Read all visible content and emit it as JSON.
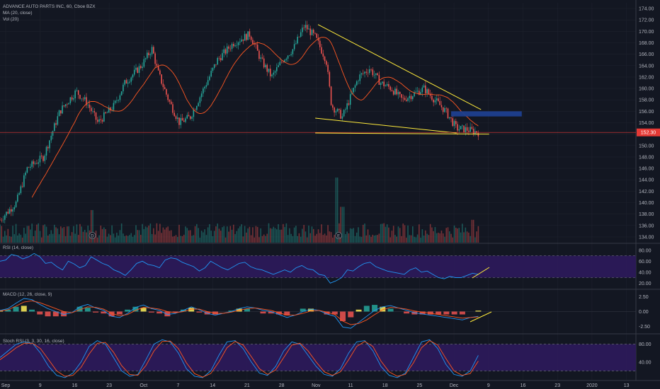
{
  "header": {
    "title": "ADVANCE AUTO PARTS INC, 60, Cboe BZX",
    "ma_label": "MA (20, close)",
    "vol_label": "Vol (20)"
  },
  "panes": {
    "rsi_label": "RSI (14, close)",
    "macd_label": "MACD (12, 26, close, 9)",
    "stoch_label": "Stoch RSI (3, 3, 30, 16, close)"
  },
  "last_price": "152.30",
  "colors": {
    "background": "#131722",
    "up": "#26a69a",
    "down": "#ef5350",
    "ma": "#ff5722",
    "trendline": "#ffeb3b",
    "zone": "#1e3f8f",
    "price_line": "#e53935",
    "purple_band": "#2e1a5c",
    "indicator_line": "#2196f3"
  },
  "chart_data": [
    {
      "type": "candlestick",
      "title": "ADVANCE AUTO PARTS INC, 60, Cboe BZX",
      "ylim": [
        133,
        175
      ],
      "y_ticks": [
        "174.00",
        "172.00",
        "170.00",
        "168.00",
        "166.00",
        "164.00",
        "162.00",
        "160.00",
        "158.00",
        "156.00",
        "154.00",
        "152.00",
        "150.00",
        "148.00",
        "146.00",
        "144.00",
        "142.00",
        "140.00",
        "138.00",
        "136.00",
        "134.00"
      ],
      "x_tick_labels": [
        "Sep",
        "9",
        "16",
        "23",
        "Oct",
        "7",
        "14",
        "21",
        "28",
        "Nov",
        "11",
        "18",
        "25",
        "Dec",
        "9",
        "16",
        "23",
        "2020",
        "13"
      ],
      "events": [
        "D",
        "E"
      ],
      "price_path": [
        {
          "x": 0,
          "y": 137
        },
        {
          "x": 3,
          "y": 140
        },
        {
          "x": 5,
          "y": 146
        },
        {
          "x": 8,
          "y": 148
        },
        {
          "x": 11,
          "y": 156
        },
        {
          "x": 14,
          "y": 159.5
        },
        {
          "x": 16,
          "y": 157.5
        },
        {
          "x": 18,
          "y": 154
        },
        {
          "x": 21,
          "y": 157
        },
        {
          "x": 23,
          "y": 161
        },
        {
          "x": 26,
          "y": 164
        },
        {
          "x": 28,
          "y": 167
        },
        {
          "x": 29,
          "y": 163
        },
        {
          "x": 31,
          "y": 158
        },
        {
          "x": 33,
          "y": 154
        },
        {
          "x": 35,
          "y": 155
        },
        {
          "x": 38,
          "y": 161
        },
        {
          "x": 40,
          "y": 165
        },
        {
          "x": 43,
          "y": 168
        },
        {
          "x": 46,
          "y": 169.5
        },
        {
          "x": 48,
          "y": 165
        },
        {
          "x": 50,
          "y": 162
        },
        {
          "x": 52,
          "y": 165
        },
        {
          "x": 54,
          "y": 167
        },
        {
          "x": 56,
          "y": 171
        },
        {
          "x": 58,
          "y": 169
        },
        {
          "x": 60,
          "y": 165
        },
        {
          "x": 61,
          "y": 157
        },
        {
          "x": 63,
          "y": 155
        },
        {
          "x": 66,
          "y": 162
        },
        {
          "x": 68,
          "y": 163.5
        },
        {
          "x": 70,
          "y": 161
        },
        {
          "x": 72,
          "y": 160
        },
        {
          "x": 74,
          "y": 158
        },
        {
          "x": 76,
          "y": 159
        },
        {
          "x": 78,
          "y": 160
        },
        {
          "x": 80,
          "y": 158
        },
        {
          "x": 82,
          "y": 156
        },
        {
          "x": 84,
          "y": 153
        },
        {
          "x": 86,
          "y": 152.8
        },
        {
          "x": 88,
          "y": 152.3
        }
      ],
      "volume": {
        "typical": 0.25,
        "spikes": [
          {
            "x": 17,
            "v": 0.5
          },
          {
            "x": 62,
            "v": 1.0
          },
          {
            "x": 63,
            "v": 0.55
          },
          {
            "x": 87,
            "v": 0.35
          }
        ]
      },
      "annotations": {
        "resistance_line": [
          {
            "x": 58.5,
            "y": 171.2
          },
          {
            "x": 88.5,
            "y": 156.3
          }
        ],
        "support_line_upper": [
          {
            "x": 58,
            "y": 154.8
          },
          {
            "x": 84,
            "y": 152.2
          }
        ],
        "support_line_lower": [
          {
            "x": 58,
            "y": 152.2
          },
          {
            "x": 90,
            "y": 152.0
          }
        ],
        "zone": {
          "x1": 83,
          "x2": 96,
          "y1": 156.0,
          "y2": 155.1
        }
      }
    },
    {
      "type": "line",
      "title": "RSI (14, close)",
      "ylim": [
        10,
        90
      ],
      "y_ticks": [
        "80.00",
        "60.00",
        "40.00",
        "20.00"
      ],
      "band": [
        30,
        70
      ],
      "values": [
        60,
        62,
        72,
        70,
        64,
        68,
        74,
        68,
        56,
        58,
        50,
        44,
        60,
        55,
        48,
        52,
        68,
        62,
        56,
        52,
        44,
        40,
        34,
        44,
        56,
        60,
        54,
        52,
        48,
        62,
        66,
        64,
        58,
        54,
        50,
        42,
        48,
        60,
        54,
        48,
        44,
        50,
        56,
        58,
        50,
        46,
        44,
        40,
        36,
        40,
        44,
        40,
        48,
        52,
        46,
        44,
        36,
        34,
        20,
        24,
        30,
        44,
        42,
        50,
        56,
        58,
        50,
        46,
        42,
        40,
        38,
        36,
        44,
        48,
        40,
        42,
        36,
        30,
        28,
        32,
        30,
        30,
        34,
        38,
        36
      ]
    },
    {
      "type": "line",
      "title": "MACD (12, 26, close, 9)",
      "ylim": [
        -3.5,
        3.5
      ],
      "y_ticks": [
        "2.50",
        "0.00",
        "-2.50"
      ],
      "macd": [
        0.2,
        0.5,
        1.4,
        2.2,
        2.0,
        1.2,
        0.5,
        0.0,
        -0.5,
        -0.2,
        0.8,
        1.2,
        0.6,
        0.2,
        -0.8,
        -1.0,
        -0.3,
        0.7,
        1.1,
        0.5,
        0.2,
        -0.5,
        -0.3,
        0.2,
        0.8,
        0.3,
        -0.3,
        -0.6,
        -0.3,
        0.0,
        0.5,
        0.8,
        0.6,
        0.2,
        0.0,
        -0.5,
        -1.0,
        -0.6,
        0.0,
        0.4,
        0.2,
        -0.4,
        -0.8,
        -2.6,
        -2.8,
        -1.8,
        -0.8,
        0.2,
        0.8,
        1.0,
        0.6,
        0.2,
        -0.2,
        -0.4,
        -0.6,
        -0.8,
        -1.0,
        -1.2,
        -1.4,
        -1.0,
        -0.8
      ],
      "signal": [
        0.1,
        0.3,
        0.9,
        1.6,
        1.8,
        1.5,
        1.0,
        0.5,
        0.0,
        -0.2,
        0.3,
        0.8,
        0.7,
        0.4,
        -0.3,
        -0.7,
        -0.5,
        0.2,
        0.7,
        0.6,
        0.4,
        0.0,
        -0.2,
        0.0,
        0.4,
        0.4,
        0.0,
        -0.3,
        -0.3,
        -0.1,
        0.2,
        0.5,
        0.6,
        0.4,
        0.2,
        -0.2,
        -0.6,
        -0.6,
        -0.3,
        0.1,
        0.2,
        -0.1,
        -0.5,
        -1.6,
        -2.2,
        -2.0,
        -1.4,
        -0.5,
        0.3,
        0.7,
        0.6,
        0.4,
        0.1,
        -0.1,
        -0.3,
        -0.5,
        -0.7,
        -0.9,
        -1.1,
        -1.0,
        -0.9
      ]
    },
    {
      "type": "line",
      "title": "Stoch RSI (3, 3, 30, 16, close)",
      "ylim": [
        0,
        100
      ],
      "y_ticks": [
        "80.00",
        "40.00"
      ],
      "band": [
        20,
        80
      ],
      "k": [
        50,
        65,
        80,
        85,
        82,
        60,
        30,
        10,
        5,
        15,
        40,
        75,
        88,
        80,
        50,
        20,
        8,
        12,
        45,
        80,
        90,
        85,
        60,
        25,
        8,
        5,
        20,
        55,
        85,
        88,
        70,
        40,
        15,
        10,
        30,
        65,
        85,
        80,
        55,
        30,
        12,
        8,
        25,
        60,
        85,
        88,
        65,
        30,
        10,
        5,
        15,
        50,
        85,
        90,
        70,
        35,
        12,
        8,
        20,
        55
      ],
      "d": [
        45,
        58,
        72,
        82,
        82,
        70,
        45,
        20,
        8,
        10,
        28,
        58,
        82,
        84,
        62,
        32,
        12,
        10,
        32,
        65,
        86,
        87,
        70,
        38,
        14,
        6,
        14,
        40,
        72,
        86,
        78,
        52,
        25,
        12,
        22,
        50,
        78,
        82,
        65,
        40,
        18,
        10,
        18,
        45,
        75,
        86,
        75,
        42,
        18,
        8,
        12,
        38,
        72,
        88,
        78,
        48,
        20,
        10,
        14,
        42
      ]
    }
  ]
}
